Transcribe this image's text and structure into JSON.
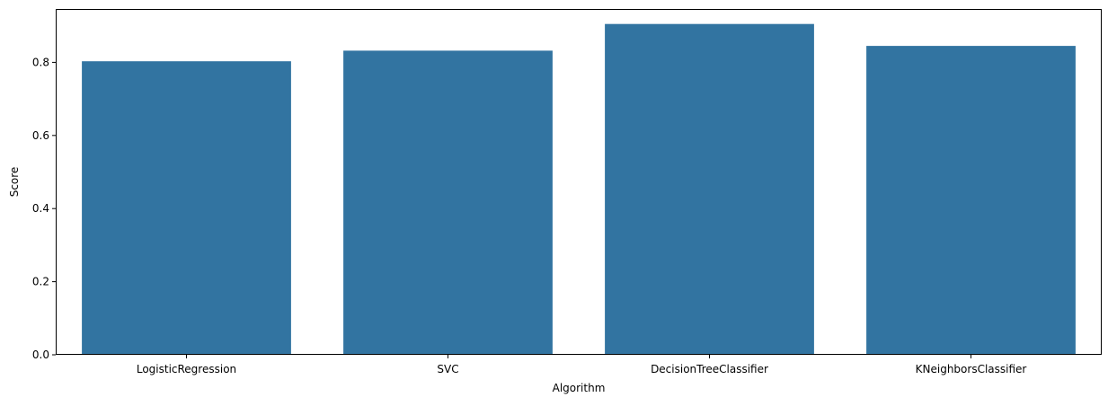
{
  "chart_data": {
    "type": "bar",
    "categories": [
      "LogisticRegression",
      "SVC",
      "DecisionTreeClassifier",
      "KNeighborsClassifier"
    ],
    "values": [
      0.803,
      0.832,
      0.905,
      0.845
    ],
    "title": "",
    "xlabel": "Algorithm",
    "ylabel": "Score",
    "ylim": [
      0,
      0.946
    ],
    "yticks": [
      0.0,
      0.2,
      0.4,
      0.6,
      0.8
    ],
    "ytick_labels": [
      "0.0",
      "0.2",
      "0.4",
      "0.6",
      "0.8"
    ],
    "grid": false,
    "legend": "none",
    "bar_color": "#3274a1"
  }
}
